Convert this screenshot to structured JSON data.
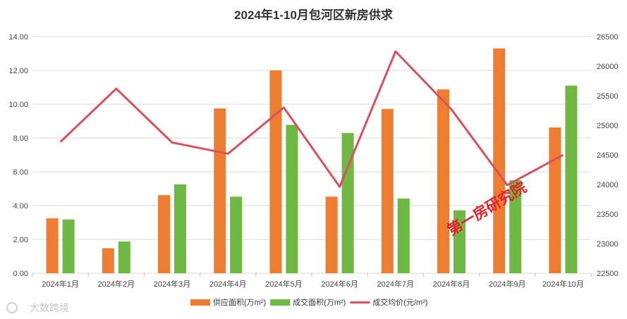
{
  "chart_data": {
    "type": "bar",
    "title": "2024年1-10月包河区新房供求",
    "categories": [
      "2024年1月",
      "2024年2月",
      "2024年3月",
      "2024年4月",
      "2024年5月",
      "2024年6月",
      "2024年7月",
      "2024年8月",
      "2024年9月",
      "2024年10月"
    ],
    "series": [
      {
        "name": "供应面积(万m²)",
        "type": "bar",
        "axis": "left",
        "color": "#ed7d31",
        "values": [
          3.25,
          1.48,
          4.62,
          9.75,
          12.0,
          4.53,
          9.72,
          10.88,
          13.3,
          8.62
        ]
      },
      {
        "name": "成交面积(万m²)",
        "type": "bar",
        "axis": "left",
        "color": "#70b844",
        "values": [
          3.18,
          1.88,
          5.26,
          4.53,
          8.78,
          8.3,
          4.42,
          3.72,
          5.5,
          11.1
        ]
      },
      {
        "name": "成交均价(元/m²)",
        "type": "line",
        "axis": "right",
        "color": "#d9505f",
        "values": [
          24720,
          25620,
          24710,
          24520,
          25300,
          23960,
          26250,
          25270,
          23990,
          24500
        ]
      }
    ],
    "y_left": {
      "range": [
        0,
        14
      ],
      "ticks": [
        "0.00",
        "2.00",
        "4.00",
        "6.00",
        "8.00",
        "10.00",
        "12.00",
        "14.00"
      ]
    },
    "y_right": {
      "range": [
        22500,
        26500
      ],
      "ticks": [
        "22500",
        "23000",
        "23500",
        "24000",
        "24500",
        "25000",
        "25500",
        "26000",
        "26500"
      ]
    },
    "grid": true,
    "legend_position": "bottom"
  },
  "watermarks": {
    "red_text": "第一房研究院",
    "grey_text": "大数跨境"
  }
}
